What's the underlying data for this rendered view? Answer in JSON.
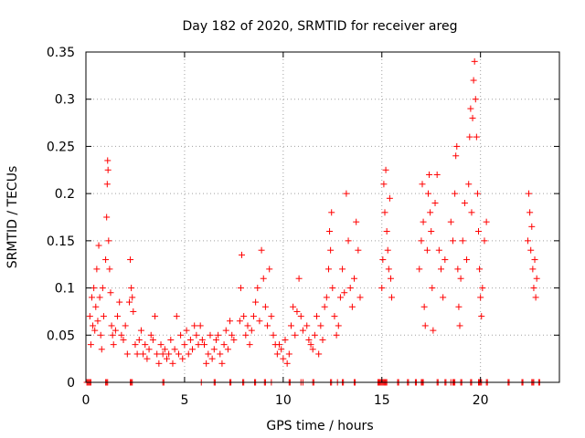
{
  "chart_data": {
    "type": "scatter",
    "title": "Day 182 of 2020, SRMTID for receiver areg",
    "xlabel": "GPS time / hours",
    "ylabel": "SRMTID / TECUs",
    "xlim": [
      0,
      24
    ],
    "ylim": [
      0,
      0.35
    ],
    "xticks": [
      0,
      5,
      10,
      15,
      20
    ],
    "xtick_labels": [
      "0",
      "5",
      "10",
      "15",
      "20"
    ],
    "yticks": [
      0,
      0.05,
      0.1,
      0.15,
      0.2,
      0.25,
      0.3,
      0.35
    ],
    "ytick_labels": [
      "0",
      "0.05",
      "0.1",
      "0.15",
      "0.2",
      "0.25",
      "0.3",
      "0.35"
    ],
    "grid": true,
    "marker": "+",
    "color": "#ff0000",
    "series": [
      {
        "name": "SRMTID",
        "points": [
          [
            0.2,
            0.07
          ],
          [
            0.25,
            0.04
          ],
          [
            0.3,
            0.09
          ],
          [
            0.35,
            0.06
          ],
          [
            0.4,
            0.1
          ],
          [
            0.45,
            0.055
          ],
          [
            0.5,
            0.08
          ],
          [
            0.55,
            0.12
          ],
          [
            0.6,
            0.065
          ],
          [
            0.65,
            0.145
          ],
          [
            0.7,
            0.09
          ],
          [
            0.75,
            0.05
          ],
          [
            0.8,
            0.035
          ],
          [
            0.85,
            0.1
          ],
          [
            0.9,
            0.07
          ],
          [
            1.0,
            0.13
          ],
          [
            1.05,
            0.175
          ],
          [
            1.08,
            0.21
          ],
          [
            1.1,
            0.235
          ],
          [
            1.12,
            0.225
          ],
          [
            1.15,
            0.15
          ],
          [
            1.2,
            0.12
          ],
          [
            1.25,
            0.095
          ],
          [
            1.3,
            0.06
          ],
          [
            1.35,
            0.05
          ],
          [
            1.4,
            0.04
          ],
          [
            1.5,
            0.055
          ],
          [
            1.6,
            0.07
          ],
          [
            1.7,
            0.085
          ],
          [
            1.8,
            0.05
          ],
          [
            1.9,
            0.045
          ],
          [
            2.0,
            0.06
          ],
          [
            2.1,
            0.03
          ],
          [
            2.2,
            0.085
          ],
          [
            2.25,
            0.13
          ],
          [
            2.3,
            0.1
          ],
          [
            2.35,
            0.09
          ],
          [
            2.4,
            0.075
          ],
          [
            2.5,
            0.04
          ],
          [
            2.6,
            0.03
          ],
          [
            2.7,
            0.045
          ],
          [
            2.8,
            0.055
          ],
          [
            2.9,
            0.03
          ],
          [
            3.0,
            0.04
          ],
          [
            3.1,
            0.025
          ],
          [
            3.2,
            0.035
          ],
          [
            3.3,
            0.05
          ],
          [
            3.4,
            0.045
          ],
          [
            3.5,
            0.07
          ],
          [
            3.6,
            0.03
          ],
          [
            3.7,
            0.02
          ],
          [
            3.8,
            0.04
          ],
          [
            3.9,
            0.03
          ],
          [
            4.0,
            0.035
          ],
          [
            4.1,
            0.025
          ],
          [
            4.2,
            0.03
          ],
          [
            4.3,
            0.045
          ],
          [
            4.4,
            0.02
          ],
          [
            4.5,
            0.035
          ],
          [
            4.6,
            0.07
          ],
          [
            4.7,
            0.03
          ],
          [
            4.8,
            0.05
          ],
          [
            4.9,
            0.025
          ],
          [
            5.0,
            0.04
          ],
          [
            5.1,
            0.055
          ],
          [
            5.2,
            0.03
          ],
          [
            5.3,
            0.045
          ],
          [
            5.4,
            0.035
          ],
          [
            5.5,
            0.06
          ],
          [
            5.6,
            0.05
          ],
          [
            5.7,
            0.04
          ],
          [
            5.8,
            0.06
          ],
          [
            5.9,
            0.045
          ],
          [
            6.0,
            0.04
          ],
          [
            6.1,
            0.02
          ],
          [
            6.2,
            0.03
          ],
          [
            6.3,
            0.05
          ],
          [
            6.4,
            0.025
          ],
          [
            6.5,
            0.035
          ],
          [
            6.6,
            0.045
          ],
          [
            6.7,
            0.05
          ],
          [
            6.8,
            0.03
          ],
          [
            6.9,
            0.02
          ],
          [
            7.0,
            0.04
          ],
          [
            7.1,
            0.055
          ],
          [
            7.2,
            0.035
          ],
          [
            7.3,
            0.065
          ],
          [
            7.4,
            0.05
          ],
          [
            7.5,
            0.045
          ],
          [
            7.8,
            0.065
          ],
          [
            7.85,
            0.1
          ],
          [
            7.9,
            0.135
          ],
          [
            8.0,
            0.07
          ],
          [
            8.1,
            0.05
          ],
          [
            8.2,
            0.06
          ],
          [
            8.3,
            0.04
          ],
          [
            8.4,
            0.055
          ],
          [
            8.5,
            0.07
          ],
          [
            8.6,
            0.085
          ],
          [
            8.7,
            0.1
          ],
          [
            8.8,
            0.065
          ],
          [
            8.9,
            0.14
          ],
          [
            9.0,
            0.11
          ],
          [
            9.1,
            0.08
          ],
          [
            9.2,
            0.06
          ],
          [
            9.3,
            0.12
          ],
          [
            9.4,
            0.07
          ],
          [
            9.5,
            0.05
          ],
          [
            9.6,
            0.04
          ],
          [
            9.7,
            0.03
          ],
          [
            9.8,
            0.04
          ],
          [
            9.9,
            0.035
          ],
          [
            10.0,
            0.025
          ],
          [
            10.1,
            0.045
          ],
          [
            10.2,
            0.02
          ],
          [
            10.3,
            0.03
          ],
          [
            10.4,
            0.06
          ],
          [
            10.5,
            0.08
          ],
          [
            10.6,
            0.05
          ],
          [
            10.7,
            0.075
          ],
          [
            10.8,
            0.11
          ],
          [
            10.9,
            0.07
          ],
          [
            11.0,
            0.055
          ],
          [
            11.2,
            0.06
          ],
          [
            11.3,
            0.045
          ],
          [
            11.4,
            0.04
          ],
          [
            11.5,
            0.035
          ],
          [
            11.6,
            0.05
          ],
          [
            11.7,
            0.07
          ],
          [
            11.8,
            0.03
          ],
          [
            11.9,
            0.06
          ],
          [
            12.0,
            0.045
          ],
          [
            12.1,
            0.08
          ],
          [
            12.2,
            0.09
          ],
          [
            12.3,
            0.12
          ],
          [
            12.35,
            0.16
          ],
          [
            12.4,
            0.14
          ],
          [
            12.45,
            0.18
          ],
          [
            12.5,
            0.1
          ],
          [
            12.6,
            0.07
          ],
          [
            12.7,
            0.05
          ],
          [
            12.8,
            0.06
          ],
          [
            12.9,
            0.09
          ],
          [
            13.0,
            0.12
          ],
          [
            13.1,
            0.095
          ],
          [
            13.2,
            0.2
          ],
          [
            13.3,
            0.15
          ],
          [
            13.4,
            0.1
          ],
          [
            13.5,
            0.08
          ],
          [
            13.6,
            0.11
          ],
          [
            13.7,
            0.17
          ],
          [
            13.8,
            0.14
          ],
          [
            13.9,
            0.09
          ],
          [
            15.0,
            0.1
          ],
          [
            15.05,
            0.13
          ],
          [
            15.1,
            0.21
          ],
          [
            15.15,
            0.18
          ],
          [
            15.2,
            0.225
          ],
          [
            15.25,
            0.16
          ],
          [
            15.3,
            0.14
          ],
          [
            15.35,
            0.12
          ],
          [
            15.4,
            0.195
          ],
          [
            15.45,
            0.11
          ],
          [
            15.5,
            0.09
          ],
          [
            16.9,
            0.12
          ],
          [
            17.0,
            0.15
          ],
          [
            17.05,
            0.21
          ],
          [
            17.1,
            0.17
          ],
          [
            17.15,
            0.08
          ],
          [
            17.2,
            0.06
          ],
          [
            17.3,
            0.14
          ],
          [
            17.35,
            0.2
          ],
          [
            17.4,
            0.22
          ],
          [
            17.45,
            0.18
          ],
          [
            17.5,
            0.16
          ],
          [
            17.55,
            0.1
          ],
          [
            17.6,
            0.055
          ],
          [
            17.7,
            0.19
          ],
          [
            17.8,
            0.22
          ],
          [
            17.9,
            0.14
          ],
          [
            18.0,
            0.12
          ],
          [
            18.1,
            0.09
          ],
          [
            18.2,
            0.13
          ],
          [
            18.5,
            0.17
          ],
          [
            18.6,
            0.15
          ],
          [
            18.7,
            0.2
          ],
          [
            18.75,
            0.24
          ],
          [
            18.8,
            0.25
          ],
          [
            18.85,
            0.12
          ],
          [
            18.9,
            0.08
          ],
          [
            18.95,
            0.06
          ],
          [
            19.0,
            0.11
          ],
          [
            19.1,
            0.15
          ],
          [
            19.2,
            0.19
          ],
          [
            19.3,
            0.13
          ],
          [
            19.4,
            0.21
          ],
          [
            19.45,
            0.26
          ],
          [
            19.5,
            0.29
          ],
          [
            19.55,
            0.18
          ],
          [
            19.6,
            0.28
          ],
          [
            19.65,
            0.32
          ],
          [
            19.7,
            0.34
          ],
          [
            19.75,
            0.3
          ],
          [
            19.8,
            0.26
          ],
          [
            19.85,
            0.2
          ],
          [
            19.9,
            0.16
          ],
          [
            19.95,
            0.12
          ],
          [
            20.0,
            0.09
          ],
          [
            20.05,
            0.07
          ],
          [
            20.1,
            0.1
          ],
          [
            20.2,
            0.15
          ],
          [
            20.3,
            0.17
          ],
          [
            22.4,
            0.15
          ],
          [
            22.45,
            0.2
          ],
          [
            22.5,
            0.18
          ],
          [
            22.55,
            0.14
          ],
          [
            22.6,
            0.165
          ],
          [
            22.65,
            0.12
          ],
          [
            22.7,
            0.1
          ],
          [
            22.75,
            0.13
          ],
          [
            22.8,
            0.09
          ],
          [
            22.85,
            0.11
          ]
        ]
      },
      {
        "name": "zero-baseline",
        "x": [
          0.05,
          0.1,
          0.15,
          0.2,
          0.25,
          1.0,
          1.05,
          1.1,
          2.25,
          2.3,
          2.35,
          3.9,
          3.95,
          5.85,
          6.5,
          6.55,
          7.3,
          7.35,
          7.95,
          8.0,
          8.55,
          8.6,
          9.05,
          9.1,
          9.4,
          10.3,
          10.35,
          10.9,
          11.0,
          11.5,
          11.55,
          12.4,
          12.45,
          12.75,
          13.0,
          13.05,
          13.6,
          13.65,
          14.8,
          14.85,
          14.9,
          14.95,
          15.0,
          15.05,
          15.1,
          15.15,
          15.2,
          15.25,
          15.8,
          15.85,
          16.3,
          16.35,
          16.7,
          16.75,
          17.0,
          17.05,
          17.1,
          17.8,
          17.85,
          18.2,
          18.25,
          18.5,
          18.6,
          18.65,
          18.7,
          19.0,
          19.05,
          19.5,
          19.55,
          19.9,
          19.95,
          20.0,
          20.05,
          20.3,
          20.35,
          21.4,
          21.45,
          22.1,
          22.15,
          22.6,
          22.65,
          22.7,
          22.95,
          23.0
        ]
      }
    ]
  }
}
